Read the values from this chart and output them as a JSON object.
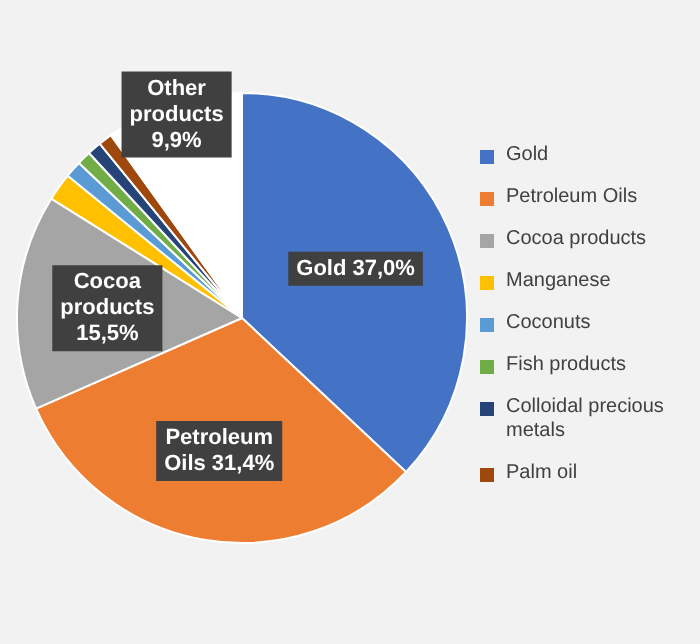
{
  "chart_data": {
    "type": "pie",
    "categories": [
      "Gold",
      "Petroleum Oils",
      "Cocoa products",
      "Manganese",
      "Coconuts",
      "Fish products",
      "Colloidal precious metals",
      "Palm oil",
      "Other products"
    ],
    "values": [
      37.0,
      31.4,
      15.5,
      2.0,
      1.2,
      1.0,
      1.0,
      1.0,
      9.9
    ],
    "colors": [
      "#4472c4",
      "#ed7d31",
      "#a5a5a5",
      "#ffc000",
      "#5b9bd5",
      "#70ad47",
      "#264478",
      "#9e480e",
      "#ffffff"
    ],
    "value_labels": [
      "37,0%",
      "31,4%",
      "15,5%",
      null,
      null,
      null,
      null,
      null,
      "9,9%"
    ],
    "legend": "right"
  }
}
